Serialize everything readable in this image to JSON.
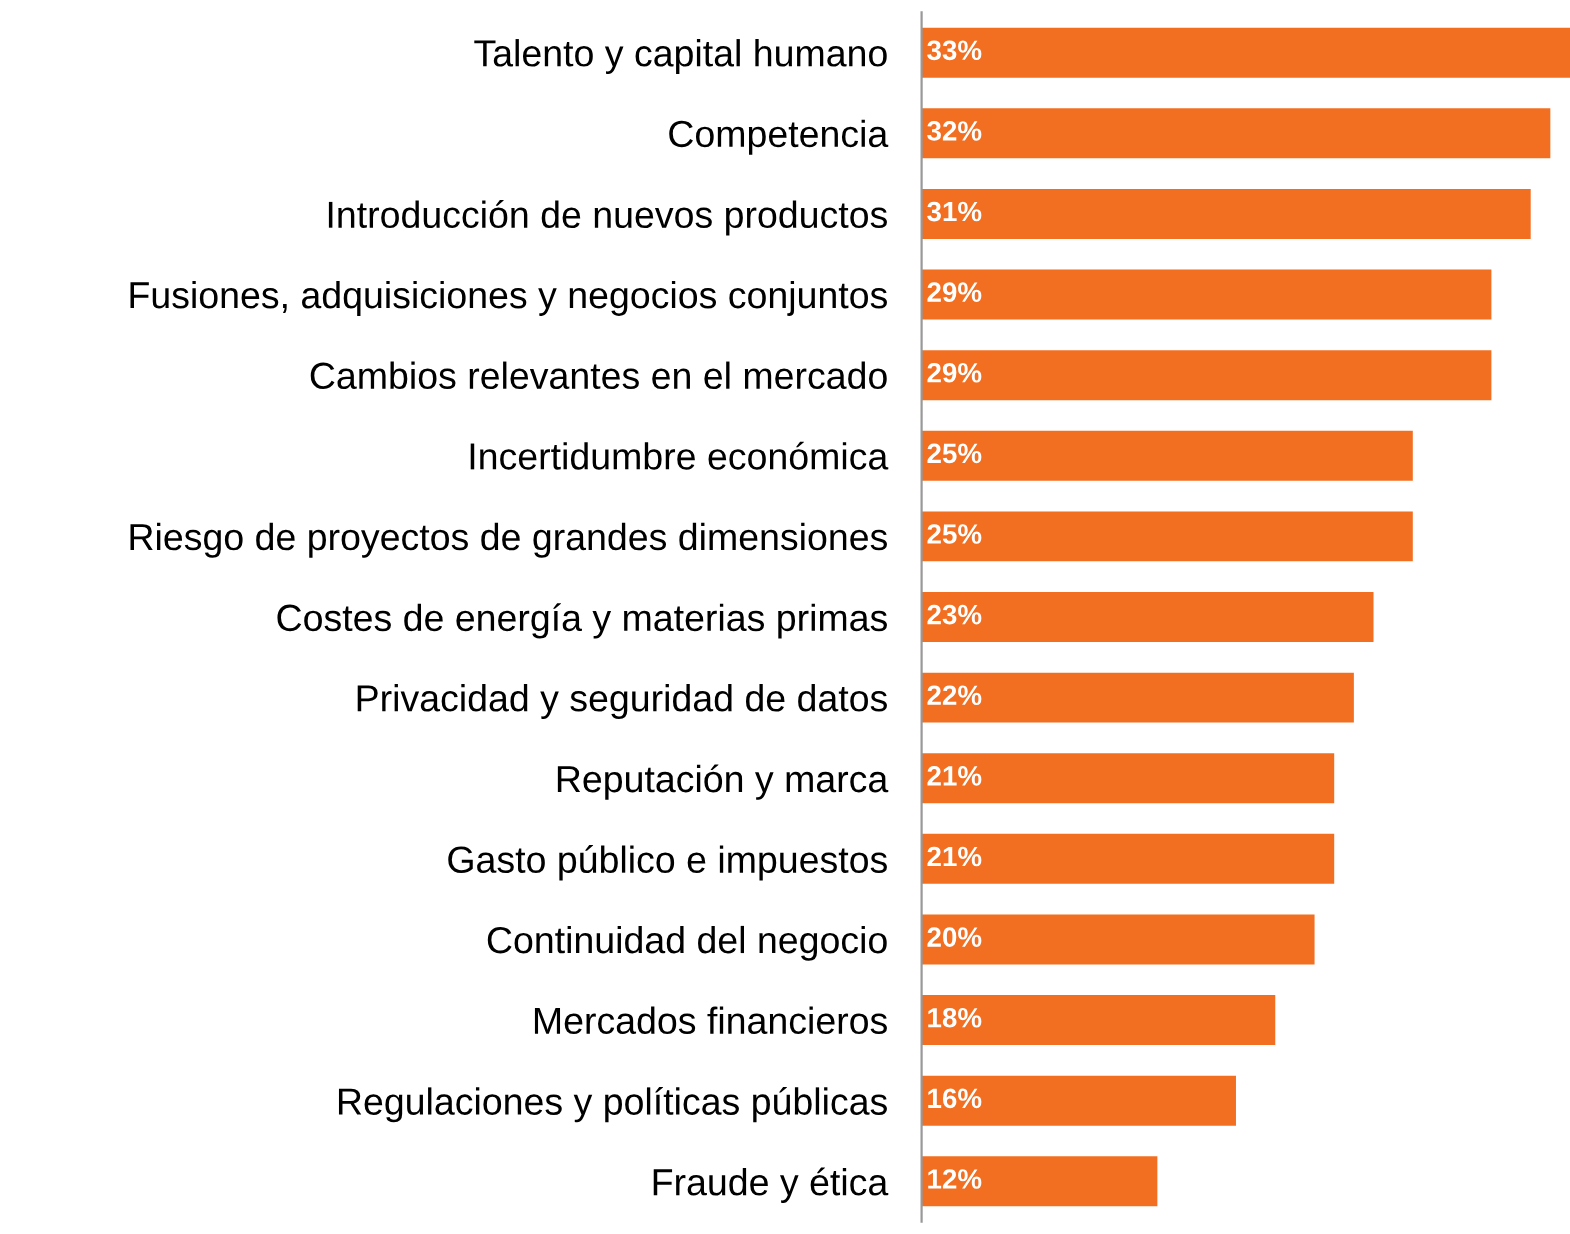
{
  "chart_data": {
    "type": "bar",
    "orientation": "horizontal",
    "categories": [
      "Talento y capital humano",
      "Competencia",
      "Introducción de nuevos productos",
      "Fusiones, adquisiciones y negocios conjuntos",
      "Cambios relevantes en el mercado",
      "Incertidumbre económica",
      "Riesgo de proyectos de grandes dimensiones",
      "Costes de energía y materias primas",
      "Privacidad y seguridad de datos",
      "Reputación y marca",
      "Gasto público e impuestos",
      "Continuidad del negocio",
      "Mercados financieros",
      "Regulaciones y políticas públicas",
      "Fraude y ética"
    ],
    "values": [
      33,
      32,
      31,
      29,
      29,
      25,
      25,
      23,
      22,
      21,
      21,
      20,
      18,
      16,
      12
    ],
    "value_labels": [
      "33%",
      "32%",
      "31%",
      "29%",
      "29%",
      "25%",
      "25%",
      "23%",
      "22%",
      "21%",
      "21%",
      "20%",
      "18%",
      "16%",
      "12%"
    ],
    "color": "#f26f21",
    "xlim": [
      0,
      33
    ],
    "tick_labels": "y",
    "grid": false,
    "legend": false
  }
}
